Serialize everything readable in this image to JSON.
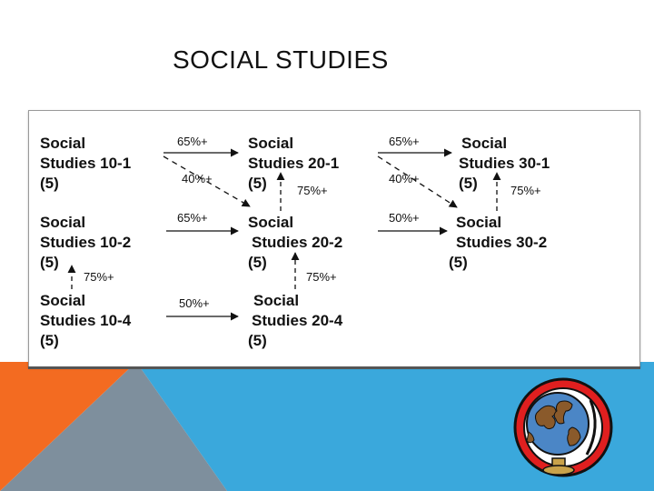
{
  "title": "SOCIAL STUDIES",
  "colors": {
    "orange": "#f36b21",
    "blue": "#3aa8dc",
    "grey": "#7e8f9d",
    "globe_ring": "#d81e1e"
  },
  "courses": {
    "ss10_1": {
      "name_line1": "Social",
      "name_line2": "Studies 10-1",
      "credits": "(5)"
    },
    "ss20_1": {
      "name_line1": "Social",
      "name_line2": "Studies 20-1",
      "credits": "(5)"
    },
    "ss30_1": {
      "name_line1": "Social",
      "name_line2": "Studies 30-1",
      "credits": "(5)"
    },
    "ss10_2": {
      "name_line1": "Social",
      "name_line2": "Studies 10-2",
      "credits": "(5)"
    },
    "ss20_2": {
      "name_line1": "Social",
      "name_line2": "Studies 20-2",
      "credits": "(5)"
    },
    "ss30_2": {
      "name_line1": "Social",
      "name_line2": "Studies 30-2",
      "credits": "(5)"
    },
    "ss10_4": {
      "name_line1": "Social",
      "name_line2": "Studies 10-4",
      "credits": "(5)"
    },
    "ss20_4": {
      "name_line1": "Social",
      "name_line2": "Studies 20-4",
      "credits": "(5)"
    }
  },
  "arrows": {
    "ss10_1_to_20_1": "65%+",
    "ss10_1_to_20_2": "40%+",
    "ss20_2_to_20_1": "75%+",
    "ss20_1_to_30_1": "65%+",
    "ss20_1_to_30_2": "40%+",
    "ss30_2_to_30_1": "75%+",
    "ss10_2_to_20_2": "65%+",
    "ss20_2_to_30_2": "50%+",
    "ss10_4_to_10_2": "75%+",
    "ss20_4_to_20_2": "75%+",
    "ss10_4_to_20_4": "50%+"
  },
  "icon": "globe-icon"
}
